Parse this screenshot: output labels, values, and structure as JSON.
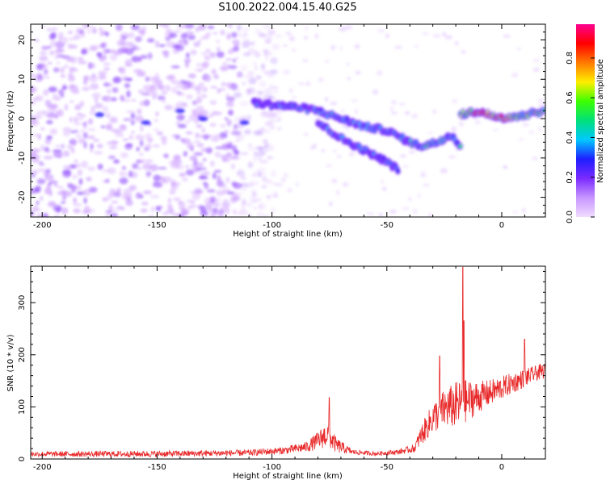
{
  "title": "S100.2022.004.15.40.G25",
  "chart_data": [
    {
      "type": "heatmap",
      "xlabel": "Height of straight line (km)",
      "ylabel": "Frequency (Hz)",
      "xlim": [
        -205,
        19
      ],
      "ylim": [
        -25,
        24
      ],
      "xticks": [
        -200,
        -150,
        -100,
        -50,
        0
      ],
      "yticks": [
        -20,
        -10,
        0,
        10,
        20
      ],
      "colorbar": {
        "label": "Normalized spectral amplitude",
        "range": [
          0.0,
          0.97
        ],
        "ticks": [
          0.0,
          0.2,
          0.4,
          0.6,
          0.8
        ],
        "colormap": [
          "#f0dcff",
          "#c896ff",
          "#7a2bff",
          "#1e1eff",
          "#00c8ff",
          "#00e07a",
          "#3cff00",
          "#ffee00",
          "#ff7a00",
          "#ff0000",
          "#ff0090"
        ]
      },
      "ridges": [
        {
          "x": [
            -108,
            -90,
            -80,
            -70,
            -60,
            -50,
            -40,
            -35,
            -28,
            -22,
            -18
          ],
          "y": [
            4,
            3,
            2,
            0,
            -2,
            -3,
            -6,
            -7,
            -6,
            -4,
            -7
          ]
        },
        {
          "x": [
            -80,
            -70,
            -60,
            -50,
            -45
          ],
          "y": [
            -1,
            -5,
            -8,
            -11,
            -13
          ]
        },
        {
          "x": [
            -18,
            -10,
            0,
            10,
            19
          ],
          "y": [
            1,
            2,
            0,
            1,
            2
          ]
        }
      ],
      "noise_region_x": [
        -205,
        -105
      ]
    },
    {
      "type": "line",
      "xlabel": "Height of straight line (km)",
      "ylabel": "SNR (10 * v/v)",
      "xlim": [
        -205,
        19
      ],
      "ylim": [
        0,
        370
      ],
      "xticks": [
        -200,
        -150,
        -100,
        -50,
        0
      ],
      "yticks": [
        0,
        100,
        200,
        300
      ],
      "color": "#e8292a",
      "envelope": {
        "x": [
          -205,
          -150,
          -110,
          -95,
          -85,
          -80,
          -76,
          -72,
          -65,
          -55,
          -45,
          -38,
          -35,
          -30,
          -25,
          -20,
          -17,
          -15,
          -10,
          -5,
          0,
          5,
          10,
          15,
          19
        ],
        "base": [
          8,
          8,
          10,
          14,
          20,
          30,
          40,
          22,
          12,
          9,
          12,
          18,
          40,
          70,
          85,
          90,
          95,
          100,
          110,
          120,
          130,
          140,
          150,
          160,
          165
        ],
        "amp": [
          10,
          12,
          12,
          14,
          20,
          35,
          50,
          30,
          10,
          8,
          10,
          15,
          40,
          60,
          75,
          90,
          90,
          80,
          60,
          50,
          45,
          40,
          35,
          30,
          30
        ]
      },
      "peaks": [
        {
          "x": -75,
          "y": 118
        },
        {
          "x": -27,
          "y": 198
        },
        {
          "x": -17,
          "y": 368
        },
        {
          "x": -16.5,
          "y": 265
        },
        {
          "x": 10,
          "y": 230
        }
      ]
    }
  ]
}
